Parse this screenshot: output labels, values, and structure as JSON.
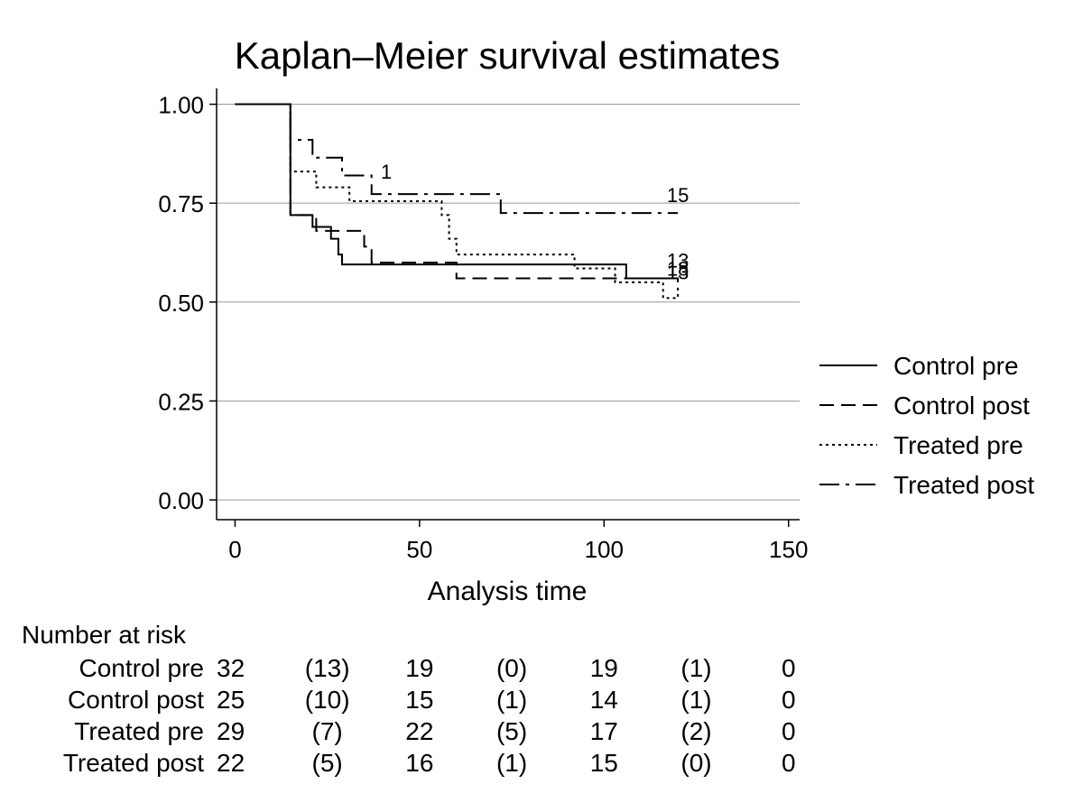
{
  "chart_data": {
    "type": "line",
    "subtype": "kaplan-meier step",
    "title": "Kaplan–Meier survival estimates",
    "xlabel": "Analysis time",
    "ylabel": "",
    "xlim": [
      -5,
      153
    ],
    "ylim": [
      -0.05,
      1.04
    ],
    "xticks": [
      0,
      50,
      100,
      150
    ],
    "xtick_labels": [
      "0",
      "50",
      "100",
      "150"
    ],
    "yticks": [
      0,
      0.25,
      0.5,
      0.75,
      1.0
    ],
    "ytick_labels": [
      "0.00",
      "0.25",
      "0.50",
      "0.75",
      "1.00"
    ],
    "grid": "horizontal",
    "legend_position": "right",
    "series": [
      {
        "name": "Control pre",
        "style": "solid",
        "steps": [
          [
            0,
            1.0
          ],
          [
            15,
            0.72
          ],
          [
            21,
            0.69
          ],
          [
            26,
            0.66
          ],
          [
            28,
            0.62
          ],
          [
            29,
            0.595
          ],
          [
            106,
            0.56
          ],
          [
            120,
            0.56
          ]
        ],
        "end_label": "13"
      },
      {
        "name": "Control post",
        "style": "dash",
        "steps": [
          [
            0,
            1.0
          ],
          [
            15,
            0.72
          ],
          [
            22,
            0.68
          ],
          [
            35,
            0.64
          ],
          [
            37,
            0.6
          ],
          [
            60,
            0.56
          ],
          [
            120,
            0.53
          ]
        ],
        "end_label": "13"
      },
      {
        "name": "Treated pre",
        "style": "dot",
        "steps": [
          [
            0,
            1.0
          ],
          [
            15,
            0.83
          ],
          [
            22,
            0.79
          ],
          [
            31,
            0.755
          ],
          [
            56,
            0.72
          ],
          [
            58,
            0.66
          ],
          [
            60,
            0.62
          ],
          [
            92,
            0.585
          ],
          [
            103,
            0.55
          ],
          [
            116,
            0.51
          ],
          [
            120,
            0.54
          ]
        ],
        "end_label": "18"
      },
      {
        "name": "Treated post",
        "style": "dashdot",
        "steps": [
          [
            0,
            1.0
          ],
          [
            15,
            0.91
          ],
          [
            21,
            0.865
          ],
          [
            29,
            0.82
          ],
          [
            37,
            0.773
          ],
          [
            72,
            0.725
          ],
          [
            120,
            0.725
          ]
        ],
        "end_label": "15",
        "annotations": [
          {
            "x": 41,
            "y": 0.78,
            "text": "1"
          }
        ]
      }
    ],
    "risk_table": {
      "title": "Number at risk",
      "time_points": [
        0,
        25,
        50,
        75,
        100,
        125,
        150
      ],
      "rows": [
        {
          "label": "Control pre",
          "values": [
            "32",
            "(13)",
            "19",
            "(0)",
            "19",
            "(1)",
            "0"
          ]
        },
        {
          "label": "Control post",
          "values": [
            "25",
            "(10)",
            "15",
            "(1)",
            "14",
            "(1)",
            "0"
          ]
        },
        {
          "label": "Treated pre",
          "values": [
            "29",
            "(7)",
            "22",
            "(5)",
            "17",
            "(2)",
            "0"
          ]
        },
        {
          "label": "Treated post",
          "values": [
            "22",
            "(5)",
            "16",
            "(1)",
            "15",
            "(0)",
            "0"
          ]
        }
      ]
    }
  }
}
